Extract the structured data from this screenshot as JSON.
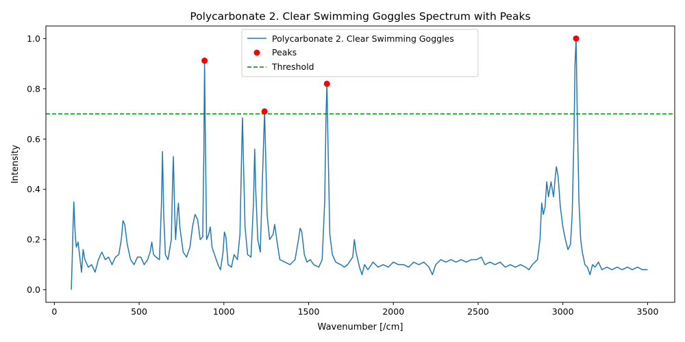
{
  "chart_data": {
    "type": "line",
    "title": "Polycarbonate 2. Clear Swimming Goggles Spectrum with Peaks",
    "xlabel": "Wavenumber [/cm]",
    "ylabel": "Intensity",
    "xlim": [
      -50,
      3660
    ],
    "ylim": [
      -0.05,
      1.05
    ],
    "x_ticks": [
      0,
      500,
      1000,
      1500,
      2000,
      2500,
      3000,
      3500
    ],
    "y_ticks": [
      0.0,
      0.2,
      0.4,
      0.6,
      0.8,
      1.0
    ],
    "x_tick_labels": [
      "0",
      "500",
      "1000",
      "1500",
      "2000",
      "2500",
      "3000",
      "3500"
    ],
    "y_tick_labels": [
      "0.0",
      "0.2",
      "0.4",
      "0.6",
      "0.8",
      "1.0"
    ],
    "grid": false,
    "legend_position": "top-center",
    "series": [
      {
        "name": "Polycarbonate 2. Clear Swimming Goggles",
        "kind": "line",
        "color": "#1f77b4",
        "points": [
          [
            100,
            0.0
          ],
          [
            105,
            0.12
          ],
          [
            110,
            0.25
          ],
          [
            115,
            0.35
          ],
          [
            120,
            0.26
          ],
          [
            125,
            0.2
          ],
          [
            130,
            0.17
          ],
          [
            140,
            0.19
          ],
          [
            150,
            0.13
          ],
          [
            160,
            0.07
          ],
          [
            170,
            0.16
          ],
          [
            180,
            0.12
          ],
          [
            200,
            0.09
          ],
          [
            220,
            0.1
          ],
          [
            240,
            0.07
          ],
          [
            260,
            0.12
          ],
          [
            280,
            0.15
          ],
          [
            300,
            0.12
          ],
          [
            320,
            0.13
          ],
          [
            340,
            0.1
          ],
          [
            360,
            0.13
          ],
          [
            380,
            0.14
          ],
          [
            395,
            0.2
          ],
          [
            405,
            0.275
          ],
          [
            415,
            0.26
          ],
          [
            430,
            0.18
          ],
          [
            450,
            0.12
          ],
          [
            470,
            0.1
          ],
          [
            490,
            0.13
          ],
          [
            510,
            0.13
          ],
          [
            530,
            0.1
          ],
          [
            550,
            0.12
          ],
          [
            565,
            0.15
          ],
          [
            575,
            0.19
          ],
          [
            585,
            0.14
          ],
          [
            600,
            0.13
          ],
          [
            620,
            0.12
          ],
          [
            632,
            0.35
          ],
          [
            638,
            0.55
          ],
          [
            645,
            0.3
          ],
          [
            655,
            0.14
          ],
          [
            670,
            0.12
          ],
          [
            690,
            0.2
          ],
          [
            698,
            0.45
          ],
          [
            702,
            0.53
          ],
          [
            708,
            0.35
          ],
          [
            715,
            0.2
          ],
          [
            725,
            0.3
          ],
          [
            732,
            0.345
          ],
          [
            740,
            0.25
          ],
          [
            760,
            0.15
          ],
          [
            780,
            0.13
          ],
          [
            800,
            0.17
          ],
          [
            815,
            0.25
          ],
          [
            830,
            0.3
          ],
          [
            845,
            0.28
          ],
          [
            860,
            0.2
          ],
          [
            875,
            0.21
          ],
          [
            882,
            0.55
          ],
          [
            886,
            0.91
          ],
          [
            891,
            0.6
          ],
          [
            898,
            0.2
          ],
          [
            910,
            0.22
          ],
          [
            920,
            0.25
          ],
          [
            930,
            0.17
          ],
          [
            950,
            0.13
          ],
          [
            965,
            0.1
          ],
          [
            980,
            0.08
          ],
          [
            995,
            0.15
          ],
          [
            1003,
            0.23
          ],
          [
            1012,
            0.21
          ],
          [
            1025,
            0.1
          ],
          [
            1045,
            0.09
          ],
          [
            1060,
            0.14
          ],
          [
            1080,
            0.12
          ],
          [
            1095,
            0.22
          ],
          [
            1105,
            0.55
          ],
          [
            1110,
            0.685
          ],
          [
            1116,
            0.5
          ],
          [
            1125,
            0.25
          ],
          [
            1140,
            0.14
          ],
          [
            1160,
            0.13
          ],
          [
            1175,
            0.35
          ],
          [
            1182,
            0.56
          ],
          [
            1188,
            0.4
          ],
          [
            1200,
            0.2
          ],
          [
            1215,
            0.15
          ],
          [
            1228,
            0.45
          ],
          [
            1235,
            0.6
          ],
          [
            1240,
            0.71
          ],
          [
            1246,
            0.55
          ],
          [
            1255,
            0.3
          ],
          [
            1270,
            0.2
          ],
          [
            1290,
            0.22
          ],
          [
            1300,
            0.26
          ],
          [
            1312,
            0.2
          ],
          [
            1330,
            0.12
          ],
          [
            1360,
            0.11
          ],
          [
            1390,
            0.1
          ],
          [
            1420,
            0.12
          ],
          [
            1440,
            0.2
          ],
          [
            1450,
            0.245
          ],
          [
            1460,
            0.23
          ],
          [
            1475,
            0.14
          ],
          [
            1490,
            0.11
          ],
          [
            1510,
            0.12
          ],
          [
            1530,
            0.1
          ],
          [
            1560,
            0.09
          ],
          [
            1580,
            0.12
          ],
          [
            1595,
            0.35
          ],
          [
            1603,
            0.7
          ],
          [
            1608,
            0.82
          ],
          [
            1614,
            0.6
          ],
          [
            1625,
            0.22
          ],
          [
            1640,
            0.14
          ],
          [
            1660,
            0.11
          ],
          [
            1690,
            0.1
          ],
          [
            1710,
            0.09
          ],
          [
            1730,
            0.1
          ],
          [
            1760,
            0.13
          ],
          [
            1770,
            0.2
          ],
          [
            1780,
            0.15
          ],
          [
            1800,
            0.09
          ],
          [
            1815,
            0.06
          ],
          [
            1830,
            0.1
          ],
          [
            1850,
            0.08
          ],
          [
            1880,
            0.11
          ],
          [
            1910,
            0.09
          ],
          [
            1940,
            0.1
          ],
          [
            1970,
            0.09
          ],
          [
            2000,
            0.11
          ],
          [
            2030,
            0.1
          ],
          [
            2060,
            0.1
          ],
          [
            2090,
            0.09
          ],
          [
            2120,
            0.11
          ],
          [
            2150,
            0.1
          ],
          [
            2180,
            0.11
          ],
          [
            2210,
            0.09
          ],
          [
            2230,
            0.06
          ],
          [
            2250,
            0.1
          ],
          [
            2280,
            0.12
          ],
          [
            2310,
            0.11
          ],
          [
            2340,
            0.12
          ],
          [
            2370,
            0.11
          ],
          [
            2400,
            0.12
          ],
          [
            2430,
            0.11
          ],
          [
            2460,
            0.12
          ],
          [
            2490,
            0.12
          ],
          [
            2520,
            0.13
          ],
          [
            2540,
            0.1
          ],
          [
            2570,
            0.11
          ],
          [
            2600,
            0.1
          ],
          [
            2630,
            0.11
          ],
          [
            2660,
            0.09
          ],
          [
            2690,
            0.1
          ],
          [
            2720,
            0.09
          ],
          [
            2750,
            0.1
          ],
          [
            2780,
            0.09
          ],
          [
            2800,
            0.08
          ],
          [
            2820,
            0.1
          ],
          [
            2850,
            0.12
          ],
          [
            2865,
            0.2
          ],
          [
            2875,
            0.345
          ],
          [
            2885,
            0.3
          ],
          [
            2895,
            0.33
          ],
          [
            2905,
            0.43
          ],
          [
            2915,
            0.37
          ],
          [
            2930,
            0.43
          ],
          [
            2945,
            0.37
          ],
          [
            2955,
            0.45
          ],
          [
            2962,
            0.49
          ],
          [
            2972,
            0.45
          ],
          [
            2985,
            0.33
          ],
          [
            3000,
            0.25
          ],
          [
            3015,
            0.2
          ],
          [
            3030,
            0.16
          ],
          [
            3045,
            0.18
          ],
          [
            3055,
            0.3
          ],
          [
            3065,
            0.6
          ],
          [
            3072,
            0.9
          ],
          [
            3078,
            1.0
          ],
          [
            3085,
            0.7
          ],
          [
            3095,
            0.35
          ],
          [
            3105,
            0.2
          ],
          [
            3115,
            0.15
          ],
          [
            3130,
            0.1
          ],
          [
            3145,
            0.09
          ],
          [
            3160,
            0.06
          ],
          [
            3175,
            0.1
          ],
          [
            3190,
            0.09
          ],
          [
            3210,
            0.11
          ],
          [
            3230,
            0.08
          ],
          [
            3260,
            0.09
          ],
          [
            3290,
            0.08
          ],
          [
            3320,
            0.09
          ],
          [
            3350,
            0.08
          ],
          [
            3380,
            0.09
          ],
          [
            3410,
            0.08
          ],
          [
            3440,
            0.09
          ],
          [
            3470,
            0.08
          ],
          [
            3500,
            0.08
          ]
        ]
      },
      {
        "name": "Peaks",
        "kind": "scatter",
        "color": "#ff0000",
        "points": [
          [
            886,
            0.912
          ],
          [
            1240,
            0.71
          ],
          [
            1608,
            0.82
          ],
          [
            3078,
            1.0
          ]
        ]
      },
      {
        "name": "Threshold",
        "kind": "hline",
        "color": "#008000",
        "y": 0.7
      }
    ]
  }
}
